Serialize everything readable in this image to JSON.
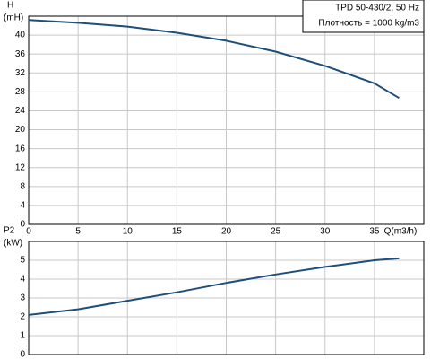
{
  "chart_data": [
    {
      "type": "line",
      "ylabel": [
        "H",
        "(mH)"
      ],
      "xlabel": "Q(m3/h)",
      "legend_lines": [
        "TPD 50-430/2, 50 Hz",
        "Плотность = 1000 kg/m3"
      ],
      "x": [
        0,
        5,
        10,
        15,
        20,
        25,
        30,
        35,
        37.5
      ],
      "values": [
        43.2,
        42.6,
        41.8,
        40.5,
        38.8,
        36.5,
        33.5,
        29.8,
        26.7
      ],
      "color": "#1f4e79",
      "xlim": [
        0,
        40
      ],
      "ylim": [
        0,
        44
      ],
      "xticks": [
        0,
        5,
        10,
        15,
        20,
        25,
        30,
        35
      ],
      "yticks": [
        0,
        4,
        8,
        12,
        16,
        20,
        24,
        28,
        32,
        36,
        40
      ],
      "grid": true
    },
    {
      "type": "line",
      "ylabel": [
        "P2",
        "(kW)"
      ],
      "x": [
        0,
        5,
        10,
        15,
        20,
        25,
        30,
        35,
        37.5
      ],
      "values": [
        2.1,
        2.4,
        2.85,
        3.3,
        3.8,
        4.25,
        4.65,
        5.0,
        5.1
      ],
      "color": "#1f4e79",
      "xlim": [
        0,
        40
      ],
      "ylim": [
        0,
        6
      ],
      "yticks": [
        0,
        1,
        2,
        3,
        4,
        5
      ],
      "grid": true
    }
  ]
}
